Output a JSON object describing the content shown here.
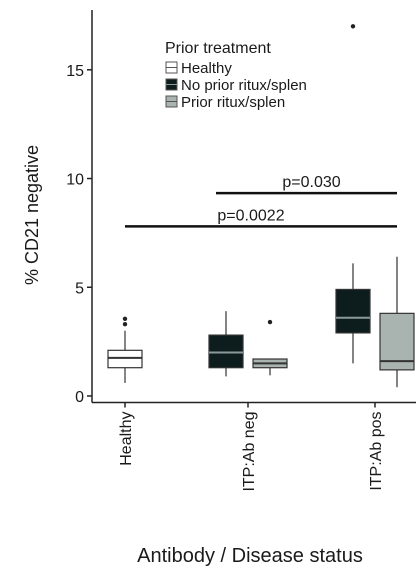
{
  "chart_data": {
    "type": "box",
    "x_label": "Antibody / Disease status",
    "y_label": "% CD21 negative",
    "legend_title": "Prior treatment",
    "categories": [
      "Healthy",
      "ITP:Ab neg",
      "ITP:Ab pos"
    ],
    "ylim": [
      -0.3,
      17.75
    ],
    "yticks": [
      0,
      5,
      10,
      15
    ],
    "series": [
      {
        "name": "Healthy",
        "color": "#ffffff",
        "values": [
          {
            "min": 0.6,
            "q1": 1.3,
            "median": 1.75,
            "q3": 2.1,
            "max": 3.0,
            "outliers": [
              3.3,
              3.55
            ]
          },
          null,
          null
        ]
      },
      {
        "name": "No prior ritux/splen",
        "color": "#0d1c1c",
        "values": [
          null,
          {
            "min": 0.9,
            "q1": 1.3,
            "median": 2.0,
            "q3": 2.8,
            "max": 3.9,
            "outliers": []
          },
          {
            "min": 1.5,
            "q1": 2.9,
            "median": 3.6,
            "q3": 4.9,
            "max": 6.1,
            "outliers": [
              17.0
            ]
          }
        ]
      },
      {
        "name": "Prior ritux/splen",
        "color": "#a9b3b0",
        "values": [
          null,
          {
            "min": 0.95,
            "q1": 1.3,
            "median": 1.5,
            "q3": 1.7,
            "max": 1.7,
            "outliers": [
              3.4
            ]
          },
          {
            "min": 0.4,
            "q1": 1.2,
            "median": 1.6,
            "q3": 3.8,
            "max": 6.4,
            "outliers": []
          }
        ]
      }
    ],
    "annotations": [
      {
        "label": "p=0.030",
        "y": 9.33
      },
      {
        "label": "p=0.0022",
        "y": 7.8
      }
    ]
  }
}
